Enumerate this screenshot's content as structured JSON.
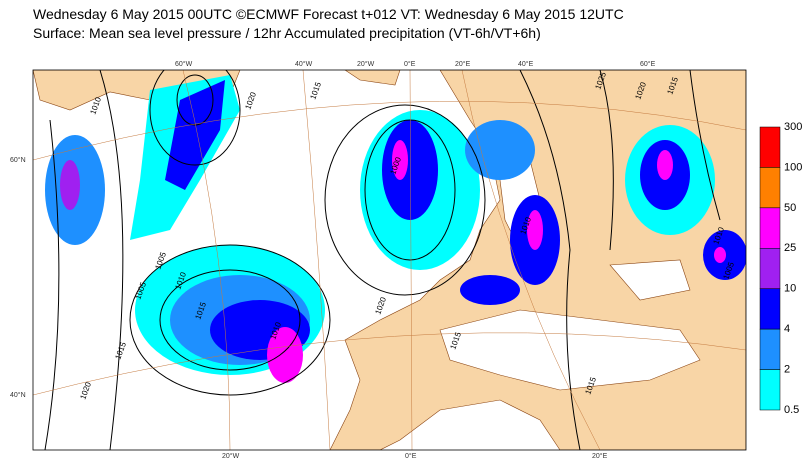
{
  "header": {
    "line1": "Wednesday 6 May 2015 00UTC ©ECMWF Forecast t+012 VT: Wednesday 6 May 2015 12UTC",
    "line2": "Surface: Mean sea level pressure / 12hr Accumulated precipitation (VT-6h/VT+6h)"
  },
  "legend": {
    "levels": [
      "300",
      "100",
      "50",
      "25",
      "10",
      "4",
      "2",
      "0.5"
    ],
    "colors": [
      "#ff0000",
      "#ff8000",
      "#ff00ff",
      "#a020f0",
      "#0000ff",
      "#1e90ff",
      "#00ffff"
    ]
  },
  "map": {
    "top_lon_labels": [
      "60°W",
      "40°W",
      "20°W",
      "0°E",
      "20°E",
      "40°E",
      "60°E"
    ],
    "bottom_lon_labels": [
      "20°W",
      "0°E",
      "20°E"
    ],
    "lat_labels": [
      "60°N",
      "40°N"
    ],
    "isobar_labels": [
      "1005",
      "1010",
      "1015",
      "1010",
      "1005",
      "1000",
      "1015",
      "1020",
      "1010",
      "1015",
      "1020",
      "1025",
      "1020",
      "1015",
      "1010",
      "1005",
      "1010",
      "1015",
      "1020",
      "1015"
    ]
  }
}
